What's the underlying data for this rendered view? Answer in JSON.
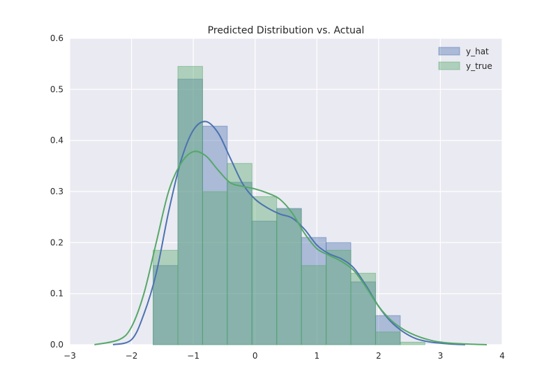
{
  "chart_data": {
    "type": "histogram",
    "title": "Predicted Distribution vs. Actual",
    "xlabel": "",
    "ylabel": "",
    "xlim": [
      -3,
      4
    ],
    "ylim": [
      0,
      0.6
    ],
    "x_ticks": [
      -3,
      -2,
      -1,
      0,
      1,
      2,
      3,
      4
    ],
    "x_tick_labels": [
      "−3",
      "−2",
      "−1",
      "0",
      "1",
      "2",
      "3",
      "4"
    ],
    "y_ticks": [
      0.0,
      0.1,
      0.2,
      0.3,
      0.4,
      0.5,
      0.6
    ],
    "y_tick_labels": [
      "0.0",
      "0.1",
      "0.2",
      "0.3",
      "0.4",
      "0.5",
      "0.6"
    ],
    "grid": true,
    "legend_position": "top-right",
    "series": [
      {
        "name": "y_hat",
        "color": "#4c72b0",
        "bins": [
          {
            "x0": -1.65,
            "x1": -1.25,
            "density": 0.155
          },
          {
            "x0": -1.25,
            "x1": -0.85,
            "density": 0.52
          },
          {
            "x0": -0.85,
            "x1": -0.45,
            "density": 0.428
          },
          {
            "x0": -0.45,
            "x1": -0.05,
            "density": 0.318
          },
          {
            "x0": -0.05,
            "x1": 0.35,
            "density": 0.242
          },
          {
            "x0": 0.35,
            "x1": 0.75,
            "density": 0.267
          },
          {
            "x0": 0.75,
            "x1": 1.15,
            "density": 0.21
          },
          {
            "x0": 1.15,
            "x1": 1.55,
            "density": 0.2
          },
          {
            "x0": 1.55,
            "x1": 1.95,
            "density": 0.123
          },
          {
            "x0": 1.95,
            "x1": 2.35,
            "density": 0.057
          }
        ],
        "kde": [
          [
            -2.3,
            0.0
          ],
          [
            -2.0,
            0.01
          ],
          [
            -1.8,
            0.06
          ],
          [
            -1.6,
            0.14
          ],
          [
            -1.4,
            0.26
          ],
          [
            -1.2,
            0.36
          ],
          [
            -1.0,
            0.42
          ],
          [
            -0.8,
            0.437
          ],
          [
            -0.6,
            0.415
          ],
          [
            -0.4,
            0.365
          ],
          [
            -0.2,
            0.315
          ],
          [
            0.0,
            0.285
          ],
          [
            0.2,
            0.268
          ],
          [
            0.4,
            0.256
          ],
          [
            0.6,
            0.248
          ],
          [
            0.8,
            0.226
          ],
          [
            1.0,
            0.195
          ],
          [
            1.2,
            0.178
          ],
          [
            1.4,
            0.168
          ],
          [
            1.6,
            0.15
          ],
          [
            1.8,
            0.115
          ],
          [
            2.0,
            0.075
          ],
          [
            2.2,
            0.045
          ],
          [
            2.4,
            0.025
          ],
          [
            2.6,
            0.012
          ],
          [
            2.8,
            0.006
          ],
          [
            3.0,
            0.003
          ],
          [
            3.2,
            0.001
          ],
          [
            3.4,
            0.0
          ]
        ]
      },
      {
        "name": "y_true",
        "color": "#55a868",
        "bins": [
          {
            "x0": -1.65,
            "x1": -1.25,
            "density": 0.185
          },
          {
            "x0": -1.25,
            "x1": -0.85,
            "density": 0.545
          },
          {
            "x0": -0.85,
            "x1": -0.45,
            "density": 0.3
          },
          {
            "x0": -0.45,
            "x1": -0.05,
            "density": 0.355
          },
          {
            "x0": -0.05,
            "x1": 0.35,
            "density": 0.29
          },
          {
            "x0": 0.35,
            "x1": 0.75,
            "density": 0.265
          },
          {
            "x0": 0.75,
            "x1": 1.15,
            "density": 0.155
          },
          {
            "x0": 1.15,
            "x1": 1.55,
            "density": 0.185
          },
          {
            "x0": 1.55,
            "x1": 1.95,
            "density": 0.14
          },
          {
            "x0": 1.95,
            "x1": 2.35,
            "density": 0.025
          },
          {
            "x0": 2.35,
            "x1": 2.75,
            "density": 0.005
          }
        ],
        "kde": [
          [
            -2.6,
            0.0
          ],
          [
            -2.2,
            0.01
          ],
          [
            -2.0,
            0.035
          ],
          [
            -1.8,
            0.1
          ],
          [
            -1.6,
            0.2
          ],
          [
            -1.4,
            0.3
          ],
          [
            -1.2,
            0.355
          ],
          [
            -1.0,
            0.378
          ],
          [
            -0.8,
            0.37
          ],
          [
            -0.6,
            0.342
          ],
          [
            -0.4,
            0.317
          ],
          [
            -0.2,
            0.31
          ],
          [
            0.0,
            0.305
          ],
          [
            0.2,
            0.297
          ],
          [
            0.4,
            0.285
          ],
          [
            0.6,
            0.258
          ],
          [
            0.8,
            0.218
          ],
          [
            1.0,
            0.188
          ],
          [
            1.2,
            0.175
          ],
          [
            1.4,
            0.163
          ],
          [
            1.6,
            0.145
          ],
          [
            1.8,
            0.112
          ],
          [
            2.0,
            0.075
          ],
          [
            2.2,
            0.048
          ],
          [
            2.4,
            0.03
          ],
          [
            2.6,
            0.018
          ],
          [
            2.8,
            0.01
          ],
          [
            3.0,
            0.005
          ],
          [
            3.3,
            0.002
          ],
          [
            3.75,
            0.0
          ]
        ]
      }
    ]
  }
}
